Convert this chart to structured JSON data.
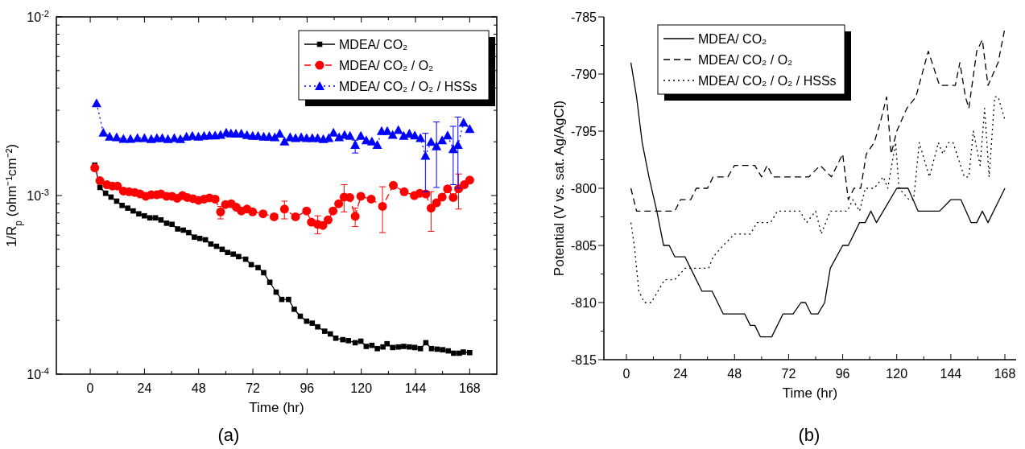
{
  "chart_data": [
    {
      "type": "line",
      "xlabel": "Time (hr)",
      "ylabel": "1/R$_{p}$ (ohm⁻¹cm⁻²)",
      "log": "y",
      "legend": "top right",
      "annotations": [
        "(a)"
      ],
      "xlim": [
        -15,
        180
      ],
      "xticks": [
        0,
        {
          "value": 12,
          "label": null
        },
        24,
        {
          "value": 36,
          "label": null
        },
        48,
        {
          "value": 60,
          "label": null
        },
        72,
        {
          "value": 84,
          "label": null
        },
        96,
        {
          "value": 108,
          "label": null
        },
        120,
        {
          "value": 132,
          "label": null
        },
        144,
        {
          "value": 156,
          "label": null
        },
        168
      ],
      "ylim": [
        0.0001,
        0.01
      ],
      "yticks": [
        {
          "value": 0.0001,
          "label": "10$^{-4}$"
        },
        {
          "value": 0.0002,
          "label": null
        },
        {
          "value": 0.0003,
          "label": null
        },
        {
          "value": 0.0004,
          "label": null
        },
        {
          "value": 0.0005,
          "label": null
        },
        {
          "value": 0.0006,
          "label": null
        },
        {
          "value": 0.0007,
          "label": null
        },
        {
          "value": 0.0008,
          "label": null
        },
        {
          "value": 0.0009,
          "label": null
        },
        {
          "value": 0.001,
          "label": "10$^{-3}$"
        },
        {
          "value": 0.002,
          "label": null
        },
        {
          "value": 0.003,
          "label": null
        },
        {
          "value": 0.004,
          "label": null
        },
        {
          "value": 0.005,
          "label": null
        },
        {
          "value": 0.006,
          "label": null
        },
        {
          "value": 0.007,
          "label": null
        },
        {
          "value": 0.008,
          "label": null
        },
        {
          "value": 0.009,
          "label": null
        },
        {
          "value": 0.01,
          "label": "10$^{-2}$"
        }
      ],
      "series": [
        {
          "name": "MDEA/ CO₂",
          "color": "#000000",
          "marker": "square",
          "line_style": "solid",
          "x": [
            2,
            4.3,
            6.8,
            9.2,
            11.7,
            14.1,
            16.6,
            19,
            21.5,
            24,
            26.4,
            28.9,
            31.3,
            33.8,
            36.2,
            38.7,
            41.2,
            43.6,
            46.1,
            48.5,
            51,
            53.4,
            55.9,
            58.4,
            60.8,
            63.3,
            65.7,
            68.8,
            71.3,
            74.3,
            76.8,
            79.5,
            82.3,
            84.8,
            87.8,
            90.3,
            93,
            95.8,
            98.3,
            100.7,
            103.8,
            106.3,
            108.7,
            111.8,
            114.3,
            117.3,
            119.8,
            122.2,
            124.7,
            127.1,
            129.6,
            131.4,
            133.9,
            136.4,
            138.8,
            141.3,
            143.7,
            146.2,
            148.6,
            151.1,
            153.6,
            156,
            158.5,
            160.9,
            163.4,
            165.2,
            168
          ],
          "values": [
            0.00148,
            0.00111,
            0.00103,
            0.00098,
            0.00093,
            0.00088,
            0.00085,
            0.00082,
            0.00079,
            0.00077,
            0.00075,
            0.00075,
            0.00073,
            0.0007,
            0.00069,
            0.00065,
            0.00064,
            0.00062,
            0.000585,
            0.000575,
            0.000565,
            0.000535,
            0.00052,
            0.0005,
            0.00048,
            0.00047,
            0.000455,
            0.00044,
            0.00041,
            0.000395,
            0.00037,
            0.000327,
            0.000288,
            0.000262,
            0.000262,
            0.000231,
            0.000211,
            0.000198,
            0.000193,
            0.000184,
            0.000174,
            0.000168,
            0.000159,
            0.000156,
            0.000154,
            0.00015,
            0.000153,
            0.000143,
            0.000145,
            0.000139,
            0.000142,
            0.000148,
            0.000141,
            0.000142,
            0.000143,
            0.000142,
            0.000141,
            0.000139,
            0.00015,
            0.000139,
            0.000138,
            0.000137,
            0.000135,
            0.000131,
            0.000131,
            0.000133,
            0.000132
          ]
        },
        {
          "name": "MDEA/ CO₂ / O₂",
          "color": "#ff0000",
          "marker": "circle",
          "line_style": "dashed",
          "x": [
            2,
            4.3,
            7.4,
            9.8,
            12,
            14.7,
            17.2,
            19.7,
            22.1,
            24.6,
            27,
            29.5,
            31.3,
            33.8,
            36.2,
            38.5,
            40.8,
            43,
            45.5,
            47.9,
            50.4,
            52.8,
            55.3,
            57.7,
            59.9,
            62.4,
            64.7,
            66.9,
            69.4,
            71.9,
            76.5,
            81.4,
            86,
            90.9,
            95.8,
            97.9,
            100.7,
            103,
            105.3,
            107.5,
            110,
            112.4,
            114.9,
            117.3,
            119.8,
            124.4,
            129.4,
            134.2,
            139,
            143.5,
            145.9,
            148.6,
            150.9,
            153.3,
            155.8,
            158.2,
            160.7,
            163.1,
            165.6,
            168
          ],
          "values": [
            0.00143,
            0.00121,
            0.00115,
            0.00113,
            0.00113,
            0.00106,
            0.00105,
            0.00104,
            0.00102,
            0.00099,
            0.00101,
            0.00101,
            0.00102,
            0.00099,
            0.00099,
            0.000965,
            0.001,
            0.000975,
            0.00096,
            0.00094,
            0.000955,
            0.00097,
            0.000955,
            0.00081,
            0.00089,
            0.0009,
            0.00086,
            0.00082,
            0.00084,
            0.00081,
            0.00079,
            0.00076,
            0.00084,
            0.00076,
            0.00082,
            0.00071,
            0.00069,
            0.00068,
            0.00073,
            0.00082,
            0.0009,
            0.00098,
            0.000975,
            0.000765,
            0.00099,
            0.000955,
            0.00087,
            0.00114,
            0.00105,
            0.001,
            0.00103,
            0.00102,
            0.00085,
            0.00091,
            0.00098,
            0.00109,
            0.000975,
            0.00109,
            0.00115,
            0.00122
          ],
          "errors": [
            null,
            null,
            null,
            null,
            null,
            null,
            null,
            null,
            null,
            null,
            null,
            null,
            null,
            null,
            null,
            null,
            null,
            null,
            null,
            null,
            null,
            null,
            null,
            [
              0.00074,
              0.00087
            ],
            null,
            null,
            null,
            null,
            null,
            null,
            null,
            null,
            [
              0.00074,
              0.00093
            ],
            null,
            null,
            null,
            [
              0.00061,
              0.00077
            ],
            null,
            null,
            null,
            null,
            [
              0.00081,
              0.00115
            ],
            null,
            [
              0.00067,
              0.00085
            ],
            null,
            null,
            [
              0.00062,
              0.00112
            ],
            null,
            null,
            null,
            null,
            null,
            [
              0.00063,
              0.00105
            ],
            null,
            null,
            null,
            null,
            [
              0.00084,
              0.00132
            ],
            null,
            null
          ]
        },
        {
          "name": "MDEA/ CO₂ / O₂ / HSSs",
          "color": "#0000ff",
          "marker": "triangle",
          "line_style": "dotted",
          "x": [
            2.8,
            5.8,
            8.6,
            11.7,
            14.7,
            17.8,
            20.9,
            24,
            27,
            29.5,
            31.9,
            34.4,
            37.2,
            39.9,
            42.6,
            45.2,
            47.9,
            50.4,
            52.8,
            55.3,
            57.7,
            60.2,
            62.3,
            64.5,
            66.9,
            69.4,
            71.9,
            74.3,
            76.8,
            79.2,
            81.7,
            83.9,
            86,
            88.5,
            90.9,
            93.4,
            95.8,
            98.3,
            100.7,
            103.2,
            105.6,
            107.7,
            110.2,
            112.6,
            115,
            117.3,
            119.8,
            122.2,
            124.7,
            127.1,
            129,
            131.5,
            133.9,
            136.4,
            138.8,
            141.3,
            143.7,
            146.2,
            148.4,
            150.9,
            153.3,
            155.8,
            158.2,
            160.7,
            162.8,
            165.3,
            168
          ],
          "values": [
            0.00329,
            0.00225,
            0.00214,
            0.00212,
            0.00208,
            0.00208,
            0.0021,
            0.0021,
            0.00207,
            0.0021,
            0.0021,
            0.00207,
            0.0021,
            0.00207,
            0.00214,
            0.00216,
            0.00214,
            0.00216,
            0.00217,
            0.00217,
            0.00219,
            0.00225,
            0.00223,
            0.00222,
            0.00222,
            0.00218,
            0.00216,
            0.00216,
            0.00214,
            0.00214,
            0.00212,
            0.00222,
            0.00201,
            0.00212,
            0.0021,
            0.00212,
            0.0021,
            0.0021,
            0.0021,
            0.00207,
            0.0021,
            0.00225,
            0.00212,
            0.00219,
            0.00216,
            0.00192,
            0.00216,
            0.00204,
            0.00201,
            0.00192,
            0.0023,
            0.0023,
            0.00219,
            0.00233,
            0.00216,
            0.00222,
            0.00217,
            0.0021,
            0.00167,
            0.002,
            0.00189,
            0.00204,
            0.00217,
            0.00182,
            0.00192,
            0.00256,
            0.00236
          ],
          "errors": [
            null,
            null,
            null,
            null,
            null,
            null,
            null,
            null,
            null,
            null,
            null,
            null,
            null,
            null,
            null,
            null,
            null,
            null,
            null,
            null,
            null,
            null,
            null,
            null,
            null,
            null,
            null,
            null,
            null,
            null,
            null,
            null,
            null,
            null,
            null,
            null,
            null,
            null,
            null,
            null,
            null,
            null,
            null,
            null,
            null,
            [
              0.00173,
              0.00204
            ],
            null,
            null,
            null,
            null,
            null,
            null,
            null,
            null,
            null,
            null,
            null,
            null,
            [
              0.00105,
              0.00223
            ],
            null,
            [
              0.00111,
              0.00258
            ],
            null,
            null,
            [
              0.00115,
              0.00244
            ],
            [
              0.0011,
              0.00275
            ],
            null,
            null
          ]
        }
      ]
    },
    {
      "type": "line",
      "xlabel": "Time (hr)",
      "ylabel": "Potential (V vs. sat. Ag/AgCl)",
      "legend": "top left",
      "annotations": [
        "(b)"
      ],
      "xlim": [
        -10,
        173
      ],
      "xticks": [
        0,
        {
          "value": 12,
          "label": null
        },
        24,
        {
          "value": 36,
          "label": null
        },
        48,
        {
          "value": 60,
          "label": null
        },
        72,
        {
          "value": 84,
          "label": null
        },
        96,
        {
          "value": 108,
          "label": null
        },
        120,
        {
          "value": 132,
          "label": null
        },
        144,
        {
          "value": 156,
          "label": null
        },
        168
      ],
      "ylim": [
        -815,
        -785
      ],
      "yticks": [
        -815,
        {
          "value": -812.5,
          "label": null
        },
        -810,
        {
          "value": -807.5,
          "label": null
        },
        -805,
        {
          "value": -802.5,
          "label": null
        },
        -800,
        {
          "value": -797.5,
          "label": null
        },
        -795,
        {
          "value": -792.5,
          "label": null
        },
        -790,
        {
          "value": -787.5,
          "label": null
        },
        -785
      ],
      "series": [
        {
          "name": "MDEA/ CO₂",
          "color": "#000000",
          "marker": "none",
          "line_style": "solid",
          "x": [
            2,
            4.5,
            7,
            10,
            13.5,
            16.5,
            19,
            21.5,
            26,
            28.5,
            33.5,
            38,
            43,
            52.5,
            55,
            57,
            59.5,
            64.5,
            69.5,
            74,
            77.5,
            79.5,
            82,
            85,
            88,
            90.5,
            96,
            98.5,
            103.5,
            106,
            108.5,
            111,
            120,
            125,
            129.5,
            139,
            144,
            148.5,
            153,
            155.5,
            158,
            160.5,
            168
          ],
          "values": [
            -789,
            -792,
            -796,
            -799,
            -802,
            -805,
            -805,
            -806,
            -806,
            -807,
            -809,
            -809,
            -811,
            -811,
            -812,
            -812,
            -813,
            -813,
            -811,
            -811,
            -810,
            -810,
            -811,
            -811,
            -810,
            -807,
            -805,
            -805,
            -803,
            -803,
            -802,
            -803,
            -800,
            -800,
            -802,
            -802,
            -801,
            -801,
            -803,
            -803,
            -802,
            -803,
            -800
          ]
        },
        {
          "name": "MDEA/ CO₂ / O₂",
          "color": "#000000",
          "marker": "none",
          "line_style": "dashed",
          "x": [
            2,
            4.5,
            21.5,
            24,
            28.5,
            31,
            36,
            38.5,
            45,
            48,
            57,
            60,
            62.5,
            65,
            81,
            86,
            91,
            96,
            98.5,
            101,
            104,
            106.5,
            110,
            113,
            115.5,
            117.5,
            120,
            124.5,
            128.5,
            134,
            139,
            146,
            148,
            150.5,
            152,
            155.5,
            158,
            160.5,
            165,
            168
          ],
          "values": [
            -800,
            -802,
            -802,
            -801,
            -801,
            -800,
            -800,
            -799,
            -799,
            -798,
            -798,
            -799,
            -798,
            -799,
            -799,
            -798,
            -799,
            -797,
            -801,
            -800,
            -800,
            -797,
            -796,
            -794,
            -792,
            -797,
            -795,
            -793,
            -792,
            -788,
            -791,
            -791,
            -789,
            -792,
            -793,
            -788,
            -787,
            -791,
            -789,
            -786
          ]
        },
        {
          "name": "MDEA/ CO₂ / O₂ / HSSs",
          "color": "#000000",
          "marker": "none",
          "line_style": "dotted",
          "x": [
            2,
            3.5,
            5.5,
            8,
            11,
            14,
            17,
            21.5,
            26,
            36.5,
            38.5,
            43,
            48,
            55,
            58,
            64,
            67,
            77,
            80,
            84,
            86.5,
            90.5,
            98,
            100.5,
            103.5,
            106,
            110,
            114,
            116,
            119.5,
            121,
            125.5,
            127.5,
            130,
            134.5,
            138.5,
            140.5,
            143,
            145,
            150,
            152,
            154,
            157,
            159,
            161,
            163.5,
            165,
            168
          ],
          "values": [
            -803,
            -805,
            -809,
            -810,
            -810,
            -809,
            -808,
            -808,
            -807,
            -807,
            -806,
            -805,
            -804,
            -804,
            -803,
            -803,
            -802,
            -802,
            -803,
            -802,
            -804,
            -802,
            -802,
            -801,
            -802,
            -800,
            -800,
            -799,
            -800,
            -796,
            -800,
            -801,
            -801,
            -796,
            -799,
            -796,
            -797,
            -796,
            -796,
            -799,
            -799,
            -795,
            -798,
            -793,
            -799,
            -792,
            -792,
            -794
          ]
        }
      ]
    }
  ]
}
